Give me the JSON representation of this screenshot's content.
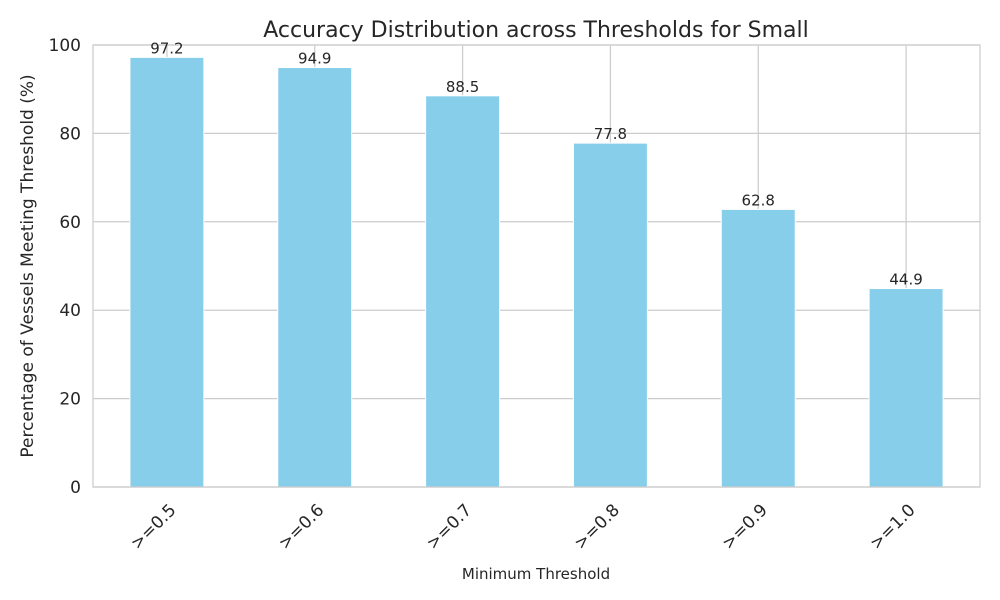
{
  "chart_data": {
    "type": "bar",
    "title": "Accuracy Distribution across Thresholds for Small",
    "xlabel": "Minimum Threshold",
    "ylabel": "Percentage of Vessels Meeting Threshold (%)",
    "categories": [
      ">=0.5",
      ">=0.6",
      ">=0.7",
      ">=0.8",
      ">=0.9",
      ">=1.0"
    ],
    "values": [
      97.2,
      94.9,
      88.5,
      77.8,
      62.8,
      44.9
    ],
    "value_labels": [
      "97.2",
      "94.9",
      "88.5",
      "77.8",
      "62.8",
      "44.9"
    ],
    "ylim": [
      0,
      100
    ],
    "yticks": [
      "0",
      "20",
      "40",
      "60",
      "80",
      "100"
    ],
    "ytick_values": [
      0,
      20,
      40,
      60,
      80,
      100
    ],
    "grid": true,
    "legend": "none",
    "colors": {
      "bar": "#87CEEB",
      "grid": "#cccccc",
      "text": "#262626"
    }
  }
}
